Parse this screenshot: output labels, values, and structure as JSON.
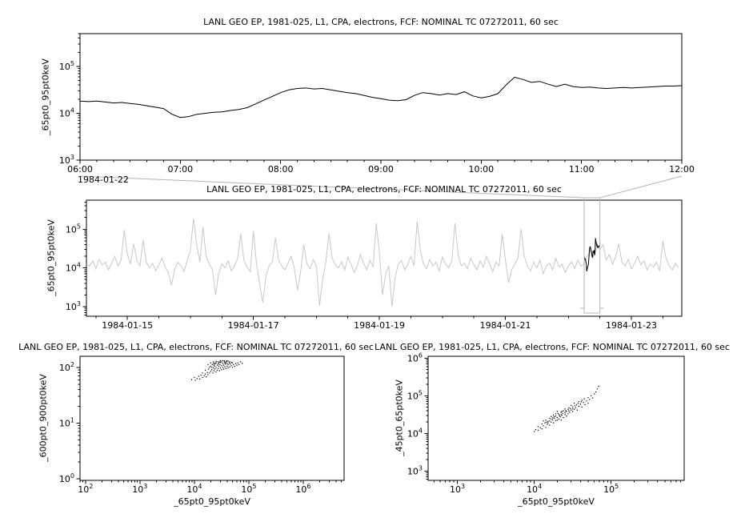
{
  "colors": {
    "background": "#ffffff",
    "axis": "#000000",
    "series": "#000000",
    "context_series": "#c8c8c8",
    "highlight": "#000000",
    "selection_box": "#b4b4b4"
  },
  "chart_data": [
    {
      "id": "detail-timeseries",
      "type": "line",
      "title": "LANL GEO EP, 1981-025, L1, CPA, electrons, FCF: NOMINAL TC 07272011, 60 sec",
      "ylabel": "_65pt0_95pt0keV",
      "x_date": "1984-01-22",
      "x_tick_labels": [
        "06:00",
        "07:00",
        "08:00",
        "09:00",
        "10:00",
        "11:00",
        "12:00"
      ],
      "x_tick_values": [
        6,
        7,
        8,
        9,
        10,
        11,
        12
      ],
      "y_tick_labels": [
        "10^3",
        "10^4",
        "10^5"
      ],
      "y_tick_values": [
        3,
        4,
        5
      ],
      "xlim_hours": [
        6,
        12
      ],
      "ylog10_range": [
        3,
        5.7
      ],
      "x_start_hour": 6,
      "x_step_hour": 0.0833333,
      "y_log10": [
        4.26,
        4.25,
        4.26,
        4.24,
        4.22,
        4.23,
        4.21,
        4.19,
        4.16,
        4.13,
        4.1,
        3.98,
        3.91,
        3.93,
        3.98,
        4.0,
        4.02,
        4.03,
        4.06,
        4.08,
        4.12,
        4.2,
        4.28,
        4.36,
        4.44,
        4.5,
        4.53,
        4.54,
        4.52,
        4.53,
        4.5,
        4.47,
        4.44,
        4.42,
        4.38,
        4.34,
        4.31,
        4.28,
        4.27,
        4.29,
        4.38,
        4.44,
        4.42,
        4.39,
        4.42,
        4.4,
        4.46,
        4.37,
        4.33,
        4.36,
        4.42,
        4.61,
        4.77,
        4.72,
        4.66,
        4.68,
        4.62,
        4.57,
        4.62,
        4.57,
        4.55,
        4.56,
        4.54,
        4.53,
        4.54,
        4.55,
        4.54,
        4.55,
        4.56,
        4.57,
        4.58,
        4.58,
        4.59
      ]
    },
    {
      "id": "context-timeseries",
      "type": "line",
      "title": "LANL GEO EP, 1981-025, L1, CPA, electrons, FCF: NOMINAL TC 07272011, 60 sec",
      "ylabel": "_65pt0_95pt0keV",
      "x_tick_labels": [
        "1984-01-15",
        "1984-01-17",
        "1984-01-19",
        "1984-01-21",
        "1984-01-23"
      ],
      "x_tick_values": [
        15,
        17,
        19,
        21,
        23
      ],
      "y_tick_labels": [
        "10^3",
        "10^4",
        "10^5"
      ],
      "y_tick_values": [
        3,
        4,
        5
      ],
      "xlim_days": [
        14.35,
        23.8
      ],
      "ylog10_range": [
        2.75,
        5.75
      ],
      "x_start_day": 14.35,
      "x_step_day": 0.05,
      "selection_days": [
        22.25,
        22.5
      ],
      "series_color": "#c8c8c8",
      "highlight_color": "#000000",
      "y_log10": [
        4.1,
        4.05,
        4.18,
        3.98,
        4.22,
        4.08,
        4.15,
        3.95,
        4.12,
        4.3,
        4.05,
        4.2,
        4.98,
        4.35,
        4.1,
        4.62,
        4.2,
        4.05,
        4.72,
        4.15,
        4.0,
        4.12,
        3.92,
        4.08,
        4.25,
        4.02,
        3.88,
        3.55,
        3.95,
        4.15,
        4.05,
        3.9,
        4.2,
        4.45,
        5.28,
        4.6,
        4.15,
        5.05,
        4.3,
        4.1,
        3.95,
        3.3,
        3.85,
        4.1,
        4.0,
        4.18,
        3.92,
        4.05,
        4.25,
        4.88,
        4.2,
        4.02,
        3.9,
        4.95,
        4.1,
        3.6,
        3.1,
        3.8,
        4.05,
        4.15,
        4.78,
        4.2,
        4.05,
        3.95,
        4.12,
        4.3,
        4.0,
        3.42,
        3.9,
        4.6,
        4.1,
        3.98,
        4.22,
        4.05,
        3.02,
        3.7,
        4.15,
        4.9,
        4.25,
        4.08,
        4.0,
        4.15,
        3.95,
        4.28,
        4.1,
        3.88,
        4.05,
        4.35,
        4.12,
        3.95,
        4.2,
        4.02,
        5.15,
        4.4,
        3.3,
        3.85,
        4.05,
        3.0,
        3.75,
        4.1,
        4.2,
        3.95,
        4.08,
        4.3,
        4.05,
        5.2,
        4.45,
        4.1,
        3.98,
        4.22,
        4.05,
        4.15,
        3.92,
        4.28,
        4.1,
        4.0,
        4.18,
        5.15,
        4.35,
        4.05,
        4.12,
        3.98,
        4.25,
        4.08,
        3.95,
        4.18,
        4.02,
        4.3,
        4.1,
        3.9,
        4.15,
        4.05,
        4.88,
        4.2,
        3.62,
        3.95,
        4.1,
        4.25,
        5.0,
        4.3,
        4.05,
        3.92,
        4.15,
        4.0,
        4.2,
        3.85,
        4.05,
        4.12,
        3.95,
        4.25,
        4.02,
        4.1,
        3.88,
        4.05,
        4.15,
        3.98,
        4.2,
        4.05,
        4.1,
        4.3,
        4.45,
        4.3,
        4.55,
        4.48,
        4.6,
        4.2,
        4.35,
        4.1,
        4.28,
        4.62,
        4.15,
        4.05,
        4.22,
        3.98,
        4.12,
        4.3,
        4.08,
        4.18,
        3.95,
        4.1,
        4.02,
        4.15,
        3.92,
        4.7,
        4.25,
        4.05,
        3.95,
        4.12,
        4.0
      ]
    },
    {
      "id": "scatter-600-900-vs-65-95",
      "type": "scatter",
      "title": "LANL GEO EP, 1981-025, L1, CPA, electrons, FCF: NOMINAL TC 07272011, 60 sec",
      "xlabel": "_65pt0_95pt0keV",
      "ylabel": "_600pt0_900pt0keV",
      "x_tick_labels": [
        "10^2",
        "10^3",
        "10^4",
        "10^5",
        "10^6"
      ],
      "x_tick_values": [
        2,
        3,
        4,
        5,
        6
      ],
      "y_tick_labels": [
        "10^0",
        "10^1",
        "10^2"
      ],
      "y_tick_values": [
        0,
        1,
        2
      ],
      "xlog10_range": [
        1.9,
        6.75
      ],
      "ylog10_range": [
        -0.03,
        2.2
      ],
      "points_log10": [
        [
          4.05,
          1.8
        ],
        [
          4.08,
          1.84
        ],
        [
          4.1,
          1.79
        ],
        [
          4.12,
          1.86
        ],
        [
          4.15,
          1.82
        ],
        [
          4.15,
          1.9
        ],
        [
          4.18,
          1.85
        ],
        [
          4.2,
          1.88
        ],
        [
          4.2,
          1.95
        ],
        [
          4.22,
          1.83
        ],
        [
          4.24,
          1.91
        ],
        [
          4.25,
          1.87
        ],
        [
          4.26,
          1.97
        ],
        [
          4.28,
          1.9
        ],
        [
          4.28,
          2.0
        ],
        [
          4.3,
          1.93
        ],
        [
          4.3,
          2.02
        ],
        [
          4.32,
          1.96
        ],
        [
          4.33,
          2.05
        ],
        [
          4.34,
          1.9
        ],
        [
          4.35,
          1.99
        ],
        [
          4.35,
          2.07
        ],
        [
          4.36,
          1.94
        ],
        [
          4.37,
          2.02
        ],
        [
          4.38,
          1.97
        ],
        [
          4.38,
          2.06
        ],
        [
          4.4,
          1.92
        ],
        [
          4.4,
          2.0
        ],
        [
          4.4,
          2.08
        ],
        [
          4.42,
          1.95
        ],
        [
          4.42,
          2.04
        ],
        [
          4.43,
          2.1
        ],
        [
          4.44,
          1.98
        ],
        [
          4.45,
          2.02
        ],
        [
          4.45,
          2.08
        ],
        [
          4.46,
          1.94
        ],
        [
          4.47,
          2.05
        ],
        [
          4.48,
          1.99
        ],
        [
          4.48,
          2.09
        ],
        [
          4.5,
          1.96
        ],
        [
          4.5,
          2.03
        ],
        [
          4.5,
          2.1
        ],
        [
          4.52,
          2.0
        ],
        [
          4.52,
          2.07
        ],
        [
          4.54,
          1.97
        ],
        [
          4.54,
          2.04
        ],
        [
          4.55,
          2.1
        ],
        [
          4.56,
          2.01
        ],
        [
          4.57,
          2.06
        ],
        [
          4.58,
          1.98
        ],
        [
          4.58,
          2.09
        ],
        [
          4.6,
          2.02
        ],
        [
          4.6,
          2.07
        ],
        [
          4.62,
          1.99
        ],
        [
          4.62,
          2.05
        ],
        [
          4.64,
          2.08
        ],
        [
          4.65,
          2.01
        ],
        [
          4.66,
          2.06
        ],
        [
          4.68,
          2.03
        ],
        [
          4.7,
          2.0
        ],
        [
          4.7,
          2.08
        ],
        [
          4.72,
          2.05
        ],
        [
          4.74,
          2.02
        ],
        [
          4.76,
          2.07
        ],
        [
          4.78,
          2.04
        ],
        [
          4.8,
          2.08
        ],
        [
          4.82,
          2.05
        ],
        [
          4.85,
          2.1
        ],
        [
          4.88,
          2.07
        ],
        [
          4.62,
          2.11
        ],
        [
          4.55,
          2.12
        ],
        [
          4.48,
          2.12
        ],
        [
          4.4,
          2.11
        ],
        [
          4.35,
          2.1
        ],
        [
          4.3,
          2.08
        ],
        [
          4.25,
          2.05
        ],
        [
          4.52,
          2.12
        ],
        [
          4.58,
          2.11
        ],
        [
          4.44,
          2.06
        ],
        [
          4.36,
          2.04
        ],
        [
          3.95,
          1.78
        ],
        [
          4.0,
          1.82
        ],
        [
          4.02,
          1.77
        ],
        [
          4.6,
          2.12
        ],
        [
          4.65,
          2.1
        ],
        [
          4.68,
          2.09
        ],
        [
          4.56,
          2.08
        ],
        [
          4.46,
          2.1
        ],
        [
          4.38,
          2.08
        ],
        [
          4.32,
          2.0
        ]
      ]
    },
    {
      "id": "scatter-45-65-vs-65-95",
      "type": "scatter",
      "title": "LANL GEO EP, 1981-025, L1, CPA, electrons, FCF: NOMINAL TC 07272011, 60 sec",
      "xlabel": "_65pt0_95pt0keV",
      "ylabel": "_45pt0_65pt0keV",
      "x_tick_labels": [
        "10^3",
        "10^4",
        "10^5"
      ],
      "x_tick_values": [
        3,
        4,
        5
      ],
      "y_tick_labels": [
        "10^3",
        "10^4",
        "10^5",
        "10^6"
      ],
      "y_tick_values": [
        3,
        4,
        5,
        6
      ],
      "xlog10_range": [
        2.62,
        5.95
      ],
      "ylog10_range": [
        2.75,
        6.05
      ],
      "points_log10": [
        [
          4.0,
          4.05
        ],
        [
          4.02,
          4.1
        ],
        [
          4.05,
          4.08
        ],
        [
          4.05,
          4.18
        ],
        [
          4.08,
          4.15
        ],
        [
          4.1,
          4.12
        ],
        [
          4.1,
          4.25
        ],
        [
          4.12,
          4.2
        ],
        [
          4.14,
          4.28
        ],
        [
          4.15,
          4.16
        ],
        [
          4.15,
          4.35
        ],
        [
          4.17,
          4.24
        ],
        [
          4.18,
          4.32
        ],
        [
          4.2,
          4.22
        ],
        [
          4.2,
          4.4
        ],
        [
          4.22,
          4.3
        ],
        [
          4.22,
          4.45
        ],
        [
          4.24,
          4.36
        ],
        [
          4.25,
          4.28
        ],
        [
          4.25,
          4.48
        ],
        [
          4.26,
          4.4
        ],
        [
          4.28,
          4.34
        ],
        [
          4.28,
          4.52
        ],
        [
          4.3,
          4.42
        ],
        [
          4.3,
          4.58
        ],
        [
          4.32,
          4.38
        ],
        [
          4.32,
          4.5
        ],
        [
          4.34,
          4.44
        ],
        [
          4.35,
          4.56
        ],
        [
          4.35,
          4.35
        ],
        [
          4.36,
          4.48
        ],
        [
          4.38,
          4.42
        ],
        [
          4.38,
          4.6
        ],
        [
          4.4,
          4.5
        ],
        [
          4.4,
          4.65
        ],
        [
          4.42,
          4.46
        ],
        [
          4.42,
          4.58
        ],
        [
          4.44,
          4.52
        ],
        [
          4.45,
          4.68
        ],
        [
          4.46,
          4.56
        ],
        [
          4.48,
          4.62
        ],
        [
          4.48,
          4.74
        ],
        [
          4.5,
          4.58
        ],
        [
          4.5,
          4.7
        ],
        [
          4.52,
          4.64
        ],
        [
          4.52,
          4.8
        ],
        [
          4.54,
          4.68
        ],
        [
          4.55,
          4.76
        ],
        [
          4.56,
          4.62
        ],
        [
          4.58,
          4.72
        ],
        [
          4.58,
          4.85
        ],
        [
          4.6,
          4.78
        ],
        [
          4.62,
          4.7
        ],
        [
          4.62,
          4.88
        ],
        [
          4.64,
          4.82
        ],
        [
          4.65,
          4.92
        ],
        [
          4.66,
          4.76
        ],
        [
          4.68,
          4.86
        ],
        [
          4.7,
          4.95
        ],
        [
          4.7,
          4.8
        ],
        [
          4.72,
          4.9
        ],
        [
          4.74,
          5.0
        ],
        [
          4.76,
          4.94
        ],
        [
          4.78,
          5.05
        ],
        [
          4.8,
          5.1
        ],
        [
          4.82,
          5.18
        ],
        [
          4.84,
          5.25
        ],
        [
          4.3,
          4.35
        ],
        [
          4.26,
          4.44
        ],
        [
          4.22,
          4.38
        ],
        [
          4.18,
          4.28
        ],
        [
          4.35,
          4.5
        ],
        [
          4.4,
          4.55
        ],
        [
          4.45,
          4.6
        ],
        [
          4.5,
          4.65
        ],
        [
          4.2,
          4.33
        ],
        [
          4.24,
          4.41
        ],
        [
          4.28,
          4.46
        ],
        [
          4.16,
          4.3
        ],
        [
          4.12,
          4.33
        ],
        [
          4.33,
          4.47
        ],
        [
          4.37,
          4.53
        ],
        [
          4.41,
          4.6
        ],
        [
          4.47,
          4.66
        ],
        [
          4.53,
          4.73
        ],
        [
          4.57,
          4.8
        ],
        [
          4.61,
          4.84
        ],
        [
          4.44,
          4.64
        ],
        [
          4.36,
          4.58
        ],
        [
          4.31,
          4.53
        ]
      ]
    }
  ]
}
